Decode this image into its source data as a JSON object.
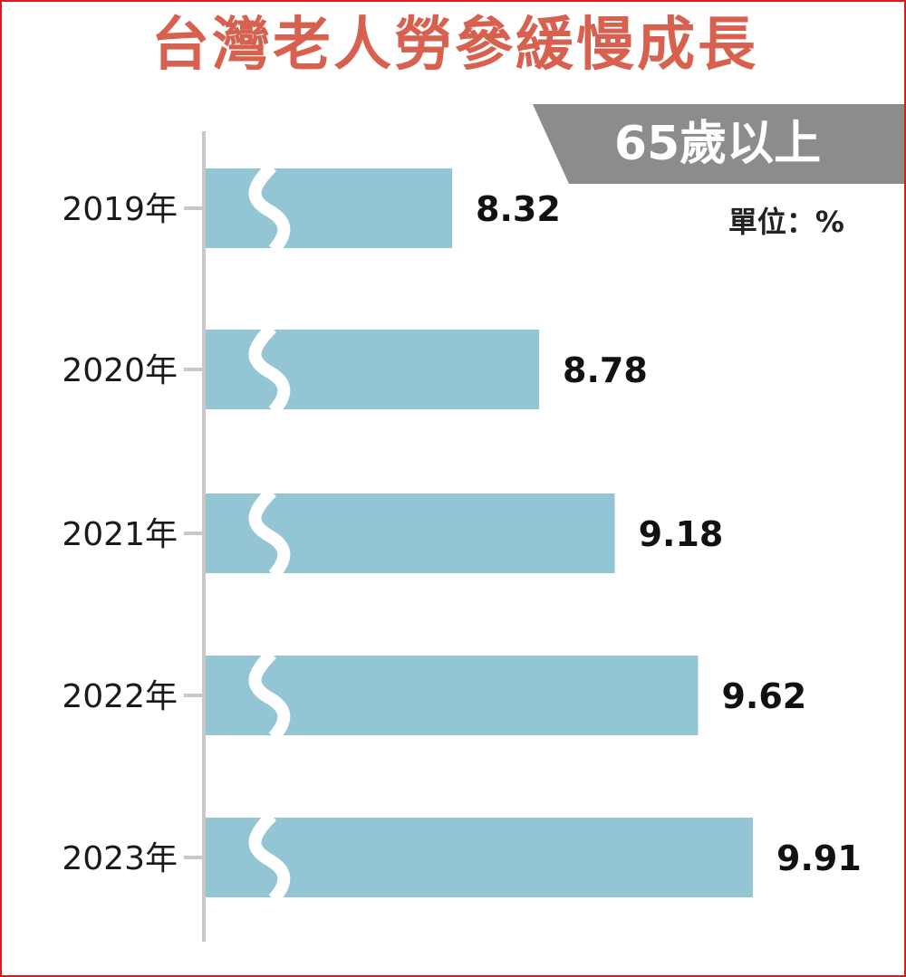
{
  "chart_data": {
    "type": "bar",
    "orientation": "horizontal",
    "title": "台灣老人勞參緩慢成長",
    "subtitle": "65歲以上",
    "unit_label": "單位：%",
    "categories": [
      "2019年",
      "2020年",
      "2021年",
      "2022年",
      "2023年"
    ],
    "values": [
      8.32,
      8.78,
      9.18,
      9.62,
      9.91
    ],
    "axis_break": true,
    "bar_color": "#93c5d4",
    "title_color": "#d8604f",
    "tag_color": "#8c8c8c",
    "border_color": "#e0171c"
  }
}
